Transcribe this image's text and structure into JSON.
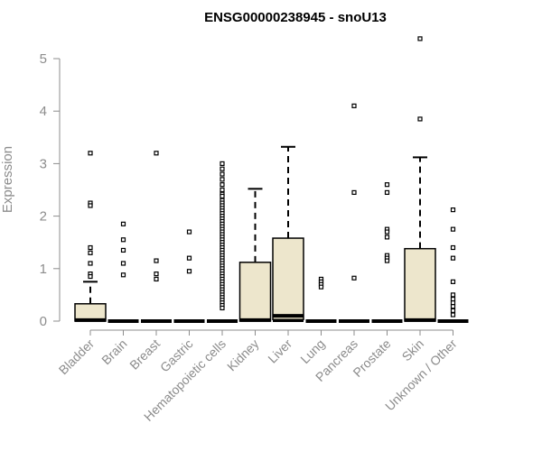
{
  "chart_data": {
    "type": "box",
    "title": "ENSG00000238945 - snoU13",
    "ylabel": "Expression",
    "xlabel": "",
    "ylim": [
      0,
      5.5
    ],
    "yticks": [
      0,
      1,
      2,
      3,
      4,
      5
    ],
    "categories": [
      "Bladder",
      "Brain",
      "Breast",
      "Gastric",
      "Hematopoietic cells",
      "Kidney",
      "Liver",
      "Lung",
      "Pancreas",
      "Prostate",
      "Skin",
      "Unknown / Other"
    ],
    "box_fill": "#ede6cc",
    "boxes": [
      {
        "q1": 0,
        "median": 0.02,
        "q3": 0.33,
        "whisker_low": 0,
        "whisker_high": 0.75,
        "outliers": [
          3.2,
          2.25,
          2.2,
          1.4,
          1.3,
          1.1,
          0.9,
          0.85
        ]
      },
      {
        "q1": 0,
        "median": 0,
        "q3": 0,
        "whisker_low": 0,
        "whisker_high": 0,
        "outliers": [
          1.85,
          1.55,
          1.35,
          1.1,
          0.88
        ]
      },
      {
        "q1": 0,
        "median": 0,
        "q3": 0,
        "whisker_low": 0,
        "whisker_high": 0,
        "outliers": [
          3.2,
          1.15,
          0.9,
          0.8
        ]
      },
      {
        "q1": 0,
        "median": 0,
        "q3": 0,
        "whisker_low": 0,
        "whisker_high": 0,
        "outliers": [
          1.7,
          1.2,
          0.95
        ]
      },
      {
        "q1": 0,
        "median": 0,
        "q3": 0,
        "whisker_low": 0,
        "whisker_high": 0,
        "outliers": [
          3.0,
          2.9,
          2.8,
          2.7,
          2.6,
          2.5,
          2.42,
          2.38,
          2.3,
          2.25,
          2.2,
          2.15,
          2.1,
          2.05,
          2.0,
          1.95,
          1.9,
          1.85,
          1.8,
          1.75,
          1.7,
          1.65,
          1.6,
          1.55,
          1.5,
          1.45,
          1.4,
          1.35,
          1.3,
          1.25,
          1.2,
          1.15,
          1.1,
          1.05,
          1.0,
          0.95,
          0.9,
          0.85,
          0.8,
          0.75,
          0.7,
          0.65,
          0.6,
          0.55,
          0.5,
          0.45,
          0.4,
          0.35,
          0.3,
          0.25
        ]
      },
      {
        "q1": 0,
        "median": 0.02,
        "q3": 1.12,
        "whisker_low": 0,
        "whisker_high": 2.52,
        "outliers": []
      },
      {
        "q1": 0.03,
        "median": 0.1,
        "q3": 1.58,
        "whisker_low": 0,
        "whisker_high": 3.32,
        "outliers": []
      },
      {
        "q1": 0,
        "median": 0,
        "q3": 0,
        "whisker_low": 0,
        "whisker_high": 0,
        "outliers": [
          0.8,
          0.75,
          0.7,
          0.65
        ]
      },
      {
        "q1": 0,
        "median": 0,
        "q3": 0,
        "whisker_low": 0,
        "whisker_high": 0,
        "outliers": [
          4.1,
          2.45,
          0.82
        ]
      },
      {
        "q1": 0,
        "median": 0,
        "q3": 0,
        "whisker_low": 0,
        "whisker_high": 0,
        "outliers": [
          2.6,
          2.45,
          1.75,
          1.7,
          1.6,
          1.25,
          1.2,
          1.15
        ]
      },
      {
        "q1": 0,
        "median": 0.02,
        "q3": 1.38,
        "whisker_low": 0,
        "whisker_high": 3.12,
        "outliers": [
          5.38,
          3.85
        ]
      },
      {
        "q1": 0,
        "median": 0,
        "q3": 0,
        "whisker_low": 0,
        "whisker_high": 0,
        "outliers": [
          2.12,
          1.75,
          1.4,
          1.2,
          0.75,
          0.5,
          0.42,
          0.35,
          0.28,
          0.2,
          0.12
        ]
      }
    ]
  }
}
